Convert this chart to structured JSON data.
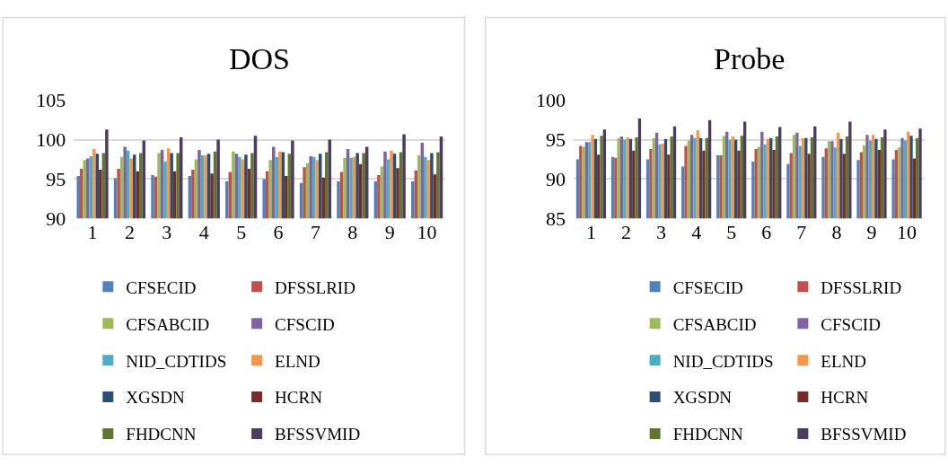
{
  "chart_data": [
    {
      "type": "bar",
      "title": "DOS",
      "categories": [
        "1",
        "2",
        "3",
        "4",
        "5",
        "6",
        "7",
        "8",
        "9",
        "10"
      ],
      "ylim": [
        90,
        105
      ],
      "yticks": [
        90,
        95,
        100,
        105
      ],
      "grid": "y",
      "legend": "bottom",
      "series": [
        {
          "name": "CFSECID",
          "color": "#4f81bd",
          "values": [
            95.4,
            95.1,
            95.5,
            95.4,
            94.7,
            95.0,
            94.5,
            94.7,
            94.7,
            94.7
          ]
        },
        {
          "name": "DFSSLRID",
          "color": "#c0504d",
          "values": [
            96.3,
            96.3,
            95.3,
            96.2,
            95.9,
            96.0,
            96.5,
            95.9,
            95.5,
            96.1
          ]
        },
        {
          "name": "CFSABCID",
          "color": "#9bbb59",
          "values": [
            97.4,
            97.8,
            98.3,
            97.5,
            98.5,
            97.4,
            97.0,
            97.7,
            96.6,
            98.0
          ]
        },
        {
          "name": "CFSCID",
          "color": "#8064a2",
          "values": [
            97.6,
            99.1,
            98.7,
            98.7,
            98.2,
            99.1,
            97.9,
            98.8,
            98.5,
            99.6
          ]
        },
        {
          "name": "NID_CDTIDS",
          "color": "#4bacc6",
          "values": [
            97.9,
            98.6,
            97.2,
            98.0,
            97.8,
            97.8,
            97.8,
            97.7,
            97.5,
            97.8
          ]
        },
        {
          "name": "ELND",
          "color": "#f79646",
          "values": [
            98.8,
            97.6,
            98.9,
            98.0,
            97.5,
            98.5,
            97.4,
            97.8,
            98.6,
            97.4
          ]
        },
        {
          "name": "XGSDN",
          "color": "#2c4d75",
          "values": [
            98.2,
            98.1,
            98.3,
            98.2,
            98.1,
            98.4,
            98.2,
            98.3,
            98.2,
            98.3
          ]
        },
        {
          "name": "HCRN",
          "color": "#772c2a",
          "values": [
            96.2,
            96.0,
            96.0,
            95.7,
            96.3,
            95.4,
            95.2,
            96.9,
            96.4,
            95.6
          ]
        },
        {
          "name": "FHDCNN",
          "color": "#5f7530",
          "values": [
            98.3,
            98.3,
            98.3,
            98.5,
            98.3,
            98.2,
            98.4,
            98.3,
            98.4,
            98.4
          ]
        },
        {
          "name": "BFSSVMID",
          "color": "#4d3b62",
          "values": [
            101.3,
            99.9,
            100.3,
            100.0,
            100.5,
            99.9,
            100.0,
            99.1,
            100.7,
            100.4
          ]
        }
      ]
    },
    {
      "type": "bar",
      "title": "Probe",
      "categories": [
        "1",
        "2",
        "3",
        "4",
        "5",
        "6",
        "7",
        "8",
        "9",
        "10"
      ],
      "ylim": [
        85,
        100
      ],
      "yticks": [
        85,
        90,
        95,
        100
      ],
      "grid": "y",
      "legend": "bottom",
      "series": [
        {
          "name": "CFSECID",
          "color": "#4f81bd",
          "values": [
            92.5,
            92.8,
            92.5,
            91.6,
            93.0,
            92.2,
            91.9,
            92.8,
            92.4,
            92.5
          ]
        },
        {
          "name": "DFSSLRID",
          "color": "#c0504d",
          "values": [
            94.2,
            92.7,
            93.8,
            94.2,
            93.0,
            93.8,
            93.3,
            93.9,
            93.4,
            93.7
          ]
        },
        {
          "name": "CFSABCID",
          "color": "#9bbb59",
          "values": [
            94.1,
            95.2,
            95.2,
            94.9,
            95.5,
            94.1,
            95.6,
            94.8,
            94.3,
            94.0
          ]
        },
        {
          "name": "CFSCID",
          "color": "#8064a2",
          "values": [
            94.7,
            95.4,
            95.9,
            95.6,
            96.0,
            96.0,
            95.9,
            94.8,
            95.6,
            95.2
          ]
        },
        {
          "name": "NID_CDTIDS",
          "color": "#4bacc6",
          "values": [
            94.7,
            95.0,
            94.4,
            95.2,
            95.0,
            94.4,
            94.2,
            94.0,
            94.9,
            94.9
          ]
        },
        {
          "name": "ELND",
          "color": "#f79646",
          "values": [
            95.6,
            95.3,
            94.5,
            96.2,
            95.4,
            95.1,
            95.2,
            95.9,
            95.6,
            96.0
          ]
        },
        {
          "name": "XGSDN",
          "color": "#2c4d75",
          "values": [
            95.1,
            95.1,
            95.1,
            95.2,
            95.0,
            95.2,
            95.2,
            95.1,
            95.1,
            95.5
          ]
        },
        {
          "name": "HCRN",
          "color": "#772c2a",
          "values": [
            93.1,
            93.6,
            93.1,
            93.6,
            93.6,
            93.7,
            93.2,
            93.2,
            93.7,
            92.6
          ]
        },
        {
          "name": "FHDCNN",
          "color": "#5f7530",
          "values": [
            95.5,
            95.3,
            95.4,
            95.2,
            95.5,
            95.4,
            95.3,
            95.4,
            95.3,
            95.2
          ]
        },
        {
          "name": "BFSSVMID",
          "color": "#4d3b62",
          "values": [
            96.3,
            97.7,
            96.7,
            97.5,
            97.3,
            96.6,
            96.7,
            97.3,
            96.3,
            96.4
          ]
        }
      ]
    }
  ]
}
